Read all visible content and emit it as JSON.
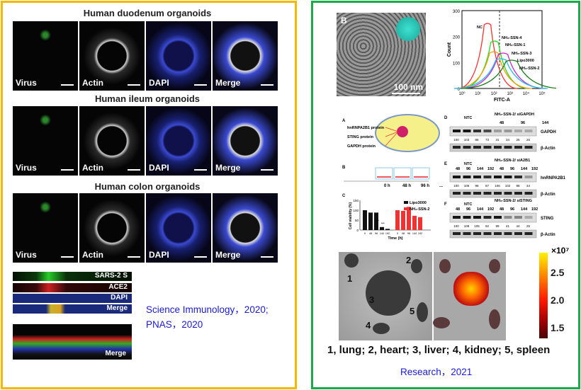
{
  "left": {
    "sections": [
      {
        "title": "Human duodenum organoids",
        "labels": [
          "Virus",
          "Actin",
          "DAPI",
          "Merge"
        ]
      },
      {
        "title": "Human ileum organoids",
        "labels": [
          "Virus",
          "Actin",
          "DAPI",
          "Merge"
        ]
      },
      {
        "title": "Human colon organoids",
        "labels": [
          "Virus",
          "Actin",
          "DAPI",
          "Merge"
        ]
      }
    ],
    "strips": [
      "SARS-2 S",
      "ACE2",
      "DAPI",
      "Merge"
    ],
    "merge_label": "Merge",
    "citation_line1": "Science Immunology，2020;",
    "citation_line2": "PNAS，2020"
  },
  "right": {
    "sem": {
      "panel_letter": "B",
      "scale": "100 nm"
    },
    "histogram": {
      "xlabel": "FITC-A",
      "ylabel": "Count",
      "yticks": [
        "0",
        "100",
        "200",
        "300"
      ],
      "xticks": [
        "10⁰",
        "10¹",
        "10²",
        "10³",
        "10⁴",
        "10⁵"
      ],
      "series": [
        "NC",
        "NH₂-SSN-4",
        "NH₂-SSN-1",
        "NH₂-SSN-3",
        "Lipo3000",
        "NH₂-SSN-2"
      ],
      "colors": [
        "#ff3030",
        "#22dd22",
        "#ff9900",
        "#cc22cc",
        "#22bbee",
        "#1a7a1a"
      ]
    },
    "schematic": {
      "letter_a": "A",
      "labels": [
        "hnRNPA2B1 protein",
        "STING protein",
        "GAPDH protein"
      ],
      "letter_b": "B",
      "times": [
        "0 h",
        "48 h",
        "96 h",
        "..."
      ]
    },
    "viability": {
      "letter": "C",
      "ylabel": "Cell viability (%)",
      "xlabel": "Time (h)",
      "yticks": [
        "0",
        "50",
        "100",
        "150"
      ],
      "categories": [
        "0",
        "48",
        "96",
        "144",
        "192"
      ],
      "series": [
        {
          "name": "Lipo3000",
          "color": "#111111",
          "values": [
            100,
            88,
            88,
            15,
            6
          ]
        },
        {
          "name": "NH₂-SSN-2",
          "color": "#ee3333",
          "values": [
            100,
            97,
            117,
            72,
            65
          ]
        }
      ],
      "sig": "***"
    },
    "blots": [
      {
        "letter": "D",
        "header": "NH₂-SSN-2/ siGAPDH",
        "ctrl": "NTC",
        "times": [
          "48",
          "96",
          "144"
        ],
        "target": "GAPDH",
        "values": [
          "100",
          "103",
          "86",
          "73",
          "31",
          "34",
          "25",
          "26"
        ],
        "loading": "β-Actin"
      },
      {
        "letter": "E",
        "header": "NH₂-SSN-2/ siA2B1",
        "ctrl": "NTC",
        "times": [
          "48",
          "96",
          "144",
          "192",
          "48",
          "96",
          "144",
          "192"
        ],
        "target": "hnRNPA2B1",
        "values": [
          "100",
          "106",
          "98",
          "87",
          "106",
          "102",
          "88",
          "34"
        ],
        "loading": "β-Actin"
      },
      {
        "letter": "F",
        "header": "NH₂-SSN-2/ siSTING",
        "ctrl": "NTC",
        "times": [
          "48",
          "96",
          "144",
          "192",
          "48",
          "96",
          "144",
          "192"
        ],
        "target": "STING",
        "values": [
          "100",
          "109",
          "105",
          "92",
          "99",
          "41",
          "44",
          "25"
        ],
        "loading": "β-Actin"
      }
    ],
    "organs": {
      "numbers": [
        "1",
        "2",
        "3",
        "4",
        "5"
      ],
      "colorbar_exp": "×10⁷",
      "colorbar_ticks": [
        "2.5",
        "2.0",
        "1.5"
      ],
      "caption": "1, lung; 2, heart; 3, liver; 4, kidney; 5, spleen"
    },
    "citation": "Research，2021"
  }
}
